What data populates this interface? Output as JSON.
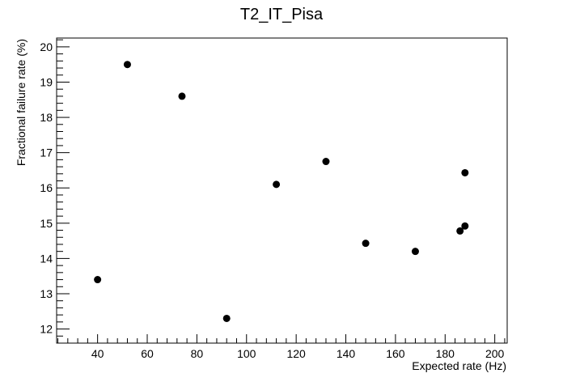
{
  "chart_data": {
    "type": "scatter",
    "title": "T2_IT_Pisa",
    "xlabel": "Expected rate (Hz)",
    "ylabel": "Fractional failure rate (%)",
    "xlim": [
      23.5,
      205
    ],
    "ylim": [
      11.6,
      20.25
    ],
    "xticks": [
      40,
      60,
      80,
      100,
      120,
      140,
      160,
      180,
      200
    ],
    "yticks": [
      12,
      13,
      14,
      15,
      16,
      17,
      18,
      19,
      20
    ],
    "grid": false,
    "legend": "none",
    "marker_color": "#000000",
    "series": [
      {
        "points": [
          {
            "x": 40,
            "y": 13.4
          },
          {
            "x": 52,
            "y": 19.5
          },
          {
            "x": 74,
            "y": 18.6
          },
          {
            "x": 92,
            "y": 12.3
          },
          {
            "x": 112,
            "y": 16.1
          },
          {
            "x": 132,
            "y": 16.75
          },
          {
            "x": 148,
            "y": 14.43
          },
          {
            "x": 168,
            "y": 14.2
          },
          {
            "x": 186,
            "y": 14.78
          },
          {
            "x": 188,
            "y": 14.92
          },
          {
            "x": 188,
            "y": 16.43
          }
        ]
      }
    ]
  }
}
